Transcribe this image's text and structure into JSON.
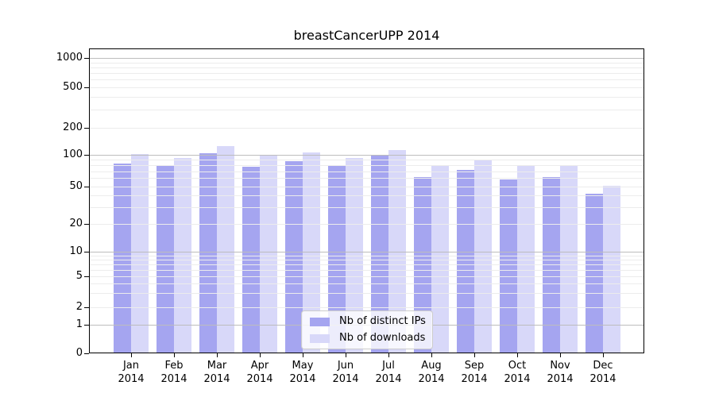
{
  "chart_data": {
    "type": "bar",
    "title": "breastCancerUPP 2014",
    "year_label": "2014",
    "categories": [
      "Jan",
      "Feb",
      "Mar",
      "Apr",
      "May",
      "Jun",
      "Jul",
      "Aug",
      "Sep",
      "Oct",
      "Nov",
      "Dec"
    ],
    "series": [
      {
        "name": "Nb of distinct IPs",
        "color": "#a5a5f0",
        "values": [
          82,
          79,
          104,
          77,
          87,
          78,
          100,
          62,
          72,
          58,
          62,
          42
        ]
      },
      {
        "name": "Nb of downloads",
        "color": "#d8d8f9",
        "values": [
          102,
          93,
          125,
          101,
          106,
          94,
          112,
          79,
          89,
          78,
          80,
          51
        ]
      }
    ],
    "y_ticks": [
      0,
      1,
      2,
      5,
      10,
      20,
      50,
      100,
      200,
      500,
      1000
    ],
    "y_gridlines_major": [
      1,
      10,
      100,
      1000
    ],
    "y_gridlines_minor": [
      2,
      3,
      4,
      5,
      6,
      7,
      8,
      9,
      20,
      30,
      40,
      50,
      60,
      70,
      80,
      90,
      200,
      300,
      400,
      500,
      600,
      700,
      800,
      900
    ],
    "ylim": [
      0,
      1000
    ],
    "yscale": "log-like (0,1,2,5 sequence)",
    "xlabel": "",
    "ylabel": "",
    "grid": true,
    "legend_position": "lower center",
    "colors": {
      "major_grid": "#bdbdbd",
      "minor_grid": "#ececec",
      "axis": "#000000",
      "background": "#ffffff"
    }
  }
}
